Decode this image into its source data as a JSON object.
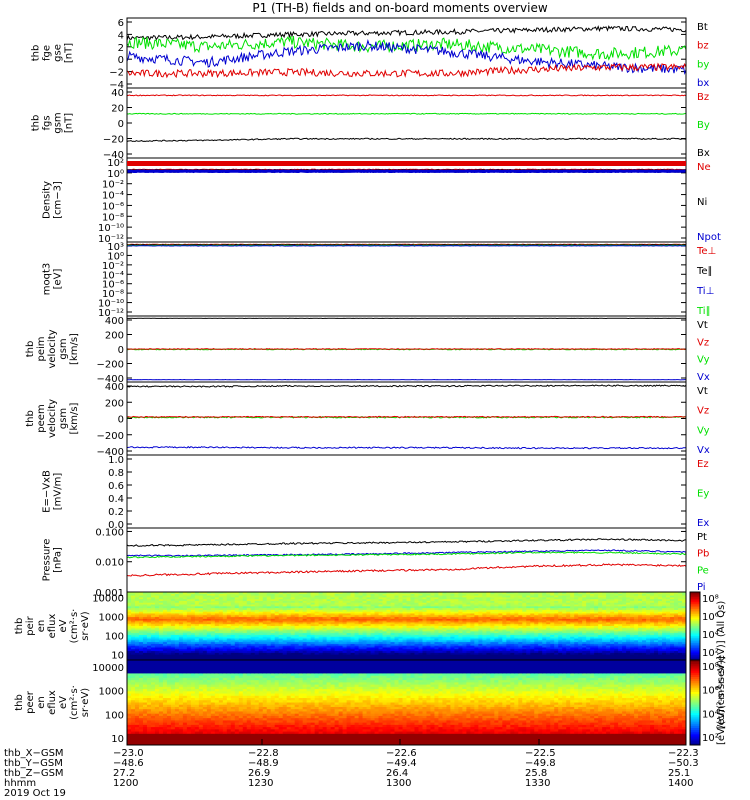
{
  "title": "P1 (TH-B) fields and on-board moments overview",
  "colors": {
    "black": "#000000",
    "red": "#e00000",
    "green": "#00e000",
    "blue": "#0000d0"
  },
  "chart_data": [
    {
      "type": "line",
      "ylabel": [
        "thb",
        "fge",
        "gse",
        "[nT]"
      ],
      "yticks": [
        "6",
        "4",
        "2",
        "0",
        "−2",
        "−4"
      ],
      "ylim": [
        -5,
        6.5
      ],
      "legend": [
        {
          "name": "Bt",
          "color": "#000000"
        },
        {
          "name": "bz",
          "color": "#e00000"
        },
        {
          "name": "by",
          "color": "#00e000"
        },
        {
          "name": "bx",
          "color": "#0000d0"
        }
      ],
      "series": [
        {
          "name": "Bt",
          "color": "#000000",
          "levels": [
            3.2,
            3.4,
            3.8,
            4.0,
            4.2,
            4.5,
            4.8,
            4.6
          ],
          "noise": 0.4
        },
        {
          "name": "by",
          "color": "#00e000",
          "levels": [
            2.6,
            1.8,
            2.6,
            1.8,
            2.2,
            1.4,
            0.6,
            1.2
          ],
          "noise": 1.0
        },
        {
          "name": "bx",
          "color": "#0000d0",
          "levels": [
            0.2,
            -0.8,
            1.0,
            2.0,
            1.0,
            -0.5,
            -1.5,
            -2.0
          ],
          "noise": 0.8
        },
        {
          "name": "bz",
          "color": "#e00000",
          "levels": [
            -2.6,
            -2.6,
            -2.4,
            -2.6,
            -2.6,
            -2.0,
            -1.6,
            -1.6
          ],
          "noise": 0.6
        }
      ]
    },
    {
      "type": "line",
      "ylabel": [
        "thb",
        "fgs",
        "gsm",
        "[nT]"
      ],
      "yticks": [
        "40",
        "20",
        "0",
        "−20",
        "−40"
      ],
      "ylim": [
        -50,
        45
      ],
      "legend": [
        {
          "name": "Bz",
          "color": "#e00000"
        },
        {
          "name": "By",
          "color": "#00e000"
        },
        {
          "name": "Bx",
          "color": "#000000"
        }
      ],
      "series": [
        {
          "name": "Bz",
          "color": "#e00000",
          "levels": [
            35,
            35,
            35,
            35,
            35,
            35,
            35,
            35
          ],
          "noise": 0.6
        },
        {
          "name": "By",
          "color": "#00e000",
          "levels": [
            10,
            10,
            10,
            10,
            10,
            10,
            10,
            10
          ],
          "noise": 0.6
        },
        {
          "name": "Bx",
          "color": "#000000",
          "levels": [
            -27,
            -26,
            -24,
            -24,
            -24,
            -24,
            -24,
            -24
          ],
          "noise": 0.8
        }
      ]
    },
    {
      "type": "line",
      "ylabel": [
        "Density",
        "[cm−3]"
      ],
      "yticks": [
        "10²",
        "10⁰",
        "10⁻²",
        "10⁻⁴",
        "10⁻⁶",
        "10⁻⁸",
        "10⁻¹⁰",
        "10⁻¹²"
      ],
      "ylim": [
        -13,
        2.5
      ],
      "legend": [
        {
          "name": "Ne",
          "color": "#e00000"
        },
        {
          "name": "Ni",
          "color": "#000000"
        },
        {
          "name": "Npot",
          "color": "#0000d0"
        }
      ],
      "series": [
        {
          "name": "Ne",
          "color": "#e00000",
          "levels": [
            0.2,
            0.2,
            0.2,
            0.2,
            0.2,
            0.2,
            0.2,
            0.2
          ],
          "noise": 0.05
        },
        {
          "name": "Ni",
          "color": "#000000",
          "levels": [
            0.1,
            0.1,
            0.1,
            0.1,
            0.1,
            0.1,
            0.1,
            0.1
          ],
          "noise": 0.05
        },
        {
          "name": "Npot",
          "color": "#0000d0",
          "levels": [
            0.05,
            0.05,
            0.05,
            0.05,
            0.05,
            0.05,
            0.05,
            0.05
          ],
          "noise": 0.05
        }
      ]
    },
    {
      "type": "line",
      "ylabel": [
        "moqt3",
        "[eV]"
      ],
      "yticks": [
        "10³",
        "10⁰",
        "10⁻²",
        "10⁻⁴",
        "10⁻⁶",
        "10⁻⁸",
        "10⁻¹⁰",
        "10⁻¹²"
      ],
      "ylim": [
        -13,
        2.5
      ],
      "legend": [
        {
          "name": "Te⊥",
          "color": "#e00000"
        },
        {
          "name": "Te∥",
          "color": "#000000"
        },
        {
          "name": "Ti⊥",
          "color": "#0000d0"
        },
        {
          "name": "Ti∥",
          "color": "#00e000"
        }
      ],
      "series": [
        {
          "name": "Te⊥",
          "color": "#e00000",
          "levels": [
            2.0,
            2.0,
            2.0,
            2.0,
            2.0,
            2.0,
            2.0,
            2.0
          ],
          "noise": 0.05
        },
        {
          "name": "Te∥",
          "color": "#000000",
          "levels": [
            1.9,
            1.9,
            1.9,
            1.9,
            1.9,
            1.9,
            1.9,
            1.9
          ],
          "noise": 0.05
        },
        {
          "name": "Ti∥",
          "color": "#00e000",
          "levels": [
            1.8,
            1.8,
            1.8,
            1.8,
            1.8,
            1.8,
            1.8,
            1.8
          ],
          "noise": 0.05
        },
        {
          "name": "Ti⊥",
          "color": "#0000d0",
          "levels": [
            1.7,
            1.7,
            1.7,
            1.7,
            1.7,
            1.7,
            1.7,
            1.7
          ],
          "noise": 0.05
        }
      ]
    },
    {
      "type": "line",
      "ylabel": [
        "thb",
        "peim",
        "velocity",
        "gsm",
        "[km/s]"
      ],
      "yticks": [
        "400",
        "200",
        "0",
        "−200",
        "−400"
      ],
      "ylim": [
        -430,
        430
      ],
      "legend": [
        {
          "name": "Vt",
          "color": "#000000"
        },
        {
          "name": "Vz",
          "color": "#e00000"
        },
        {
          "name": "Vy",
          "color": "#00e000"
        },
        {
          "name": "Vx",
          "color": "#0000d0"
        }
      ],
      "series": [
        {
          "name": "Vt",
          "color": "#000000",
          "levels": [
            400,
            400,
            400,
            400,
            400,
            400,
            400,
            400
          ],
          "noise": 2
        },
        {
          "name": "Vy",
          "color": "#00e000",
          "levels": [
            -5,
            -5,
            -5,
            -5,
            -5,
            -5,
            -5,
            -5
          ],
          "noise": 6
        },
        {
          "name": "Vz",
          "color": "#e00000",
          "levels": [
            0,
            0,
            0,
            0,
            0,
            0,
            0,
            0
          ],
          "noise": 5
        },
        {
          "name": "Vx",
          "color": "#0000d0",
          "levels": [
            -400,
            -400,
            -400,
            -400,
            -400,
            -400,
            -400,
            -400
          ],
          "noise": 2
        }
      ]
    },
    {
      "type": "line",
      "ylabel": [
        "thb",
        "peem",
        "velocity",
        "gsm",
        "[km/s]"
      ],
      "yticks": [
        "400",
        "200",
        "0",
        "−200",
        "−400"
      ],
      "ylim": [
        -470,
        430
      ],
      "legend": [
        {
          "name": "Vt",
          "color": "#000000"
        },
        {
          "name": "Vz",
          "color": "#e00000"
        },
        {
          "name": "Vy",
          "color": "#00e000"
        },
        {
          "name": "Vx",
          "color": "#0000d0"
        }
      ],
      "series": [
        {
          "name": "Vt",
          "color": "#000000",
          "levels": [
            375,
            375,
            380,
            380,
            380,
            385,
            385,
            385
          ],
          "noise": 8
        },
        {
          "name": "Vy",
          "color": "#00e000",
          "levels": [
            -5,
            -5,
            -5,
            -5,
            -5,
            -5,
            -5,
            -5
          ],
          "noise": 8
        },
        {
          "name": "Vz",
          "color": "#e00000",
          "levels": [
            0,
            0,
            0,
            0,
            0,
            0,
            0,
            0
          ],
          "noise": 6
        },
        {
          "name": "Vx",
          "color": "#0000d0",
          "levels": [
            -375,
            -375,
            -380,
            -380,
            -380,
            -385,
            -385,
            -385
          ],
          "noise": 8
        }
      ]
    },
    {
      "type": "line",
      "ylabel": [
        "E=−VxB",
        "[mV/m]"
      ],
      "yticks": [
        "1.0",
        "0.8",
        "0.6",
        "0.4",
        "0.2",
        "0.0"
      ],
      "ylim": [
        0,
        1.05
      ],
      "legend": [
        {
          "name": "Ez",
          "color": "#e00000"
        },
        {
          "name": "Ey",
          "color": "#00e000"
        },
        {
          "name": "Ex",
          "color": "#0000d0"
        }
      ],
      "series": []
    },
    {
      "type": "line",
      "yscale": "log",
      "ylabel": [
        "Pressure",
        "[nPa]"
      ],
      "yticks": [
        "0.100",
        "0.010",
        "0.001"
      ],
      "ylim": [
        0.001,
        0.13
      ],
      "legend": [
        {
          "name": "Pt",
          "color": "#000000"
        },
        {
          "name": "Pb",
          "color": "#e00000"
        },
        {
          "name": "Pe",
          "color": "#00e000"
        },
        {
          "name": "Pi",
          "color": "#0000d0"
        }
      ],
      "series": [
        {
          "name": "Pt",
          "color": "#000000",
          "levels": [
            0.034,
            0.036,
            0.04,
            0.042,
            0.045,
            0.05,
            0.055,
            0.05
          ],
          "noise": 0.06
        },
        {
          "name": "Pi",
          "color": "#0000d0",
          "levels": [
            0.016,
            0.016,
            0.017,
            0.018,
            0.02,
            0.022,
            0.024,
            0.021
          ],
          "noise": 0.05
        },
        {
          "name": "Pe",
          "color": "#00e000",
          "levels": [
            0.014,
            0.015,
            0.016,
            0.017,
            0.018,
            0.02,
            0.02,
            0.018
          ],
          "noise": 0.05
        },
        {
          "name": "Pb",
          "color": "#e00000",
          "levels": [
            0.0035,
            0.004,
            0.0045,
            0.005,
            0.0055,
            0.007,
            0.008,
            0.0075
          ],
          "noise": 0.07
        }
      ]
    },
    {
      "type": "heatmap",
      "ylabel": [
        "thb",
        "peir",
        "en",
        "eflux",
        "eV",
        "(cm²·s·",
        "sr·eV)"
      ],
      "yticks": [
        "10000",
        "1000",
        "100",
        "10"
      ],
      "ylim": [
        5,
        20000
      ],
      "colorbar": {
        "ticks": [
          "10⁸",
          "10⁶",
          "10⁴",
          "10²"
        ],
        "label": "[eV/(cm²-s-sr-eV)] (All Qs)"
      }
    },
    {
      "type": "heatmap",
      "ylabel": [
        "thb",
        "peer",
        "en",
        "eflux",
        "eV",
        "(cm²·s·",
        "sr·eV)"
      ],
      "yticks": [
        "10000",
        "1000",
        "100",
        "10"
      ],
      "ylim": [
        5,
        20000
      ],
      "colorbar": {
        "ticks": [
          "10⁸",
          "10⁶",
          "10⁴",
          "10²"
        ]
      }
    }
  ],
  "x_axis": {
    "rows": [
      {
        "label": "thb_X−GSM",
        "values": [
          "−23.0",
          "−22.8",
          "−22.6",
          "−22.5",
          "−22.3"
        ]
      },
      {
        "label": "thb_Y−GSM",
        "values": [
          "−48.6",
          "−48.9",
          "−49.4",
          "−49.8",
          "−50.3"
        ]
      },
      {
        "label": "thb_Z−GSM",
        "values": [
          "27.2",
          "26.9",
          "26.4",
          "25.8",
          "25.1"
        ]
      },
      {
        "label": "hhmm",
        "values": [
          "1200",
          "1230",
          "1300",
          "1330",
          "1400"
        ]
      }
    ],
    "date": "2019 Oct 19",
    "colorbar_label": "[eV/(cm²-s-sr-eV)]"
  }
}
